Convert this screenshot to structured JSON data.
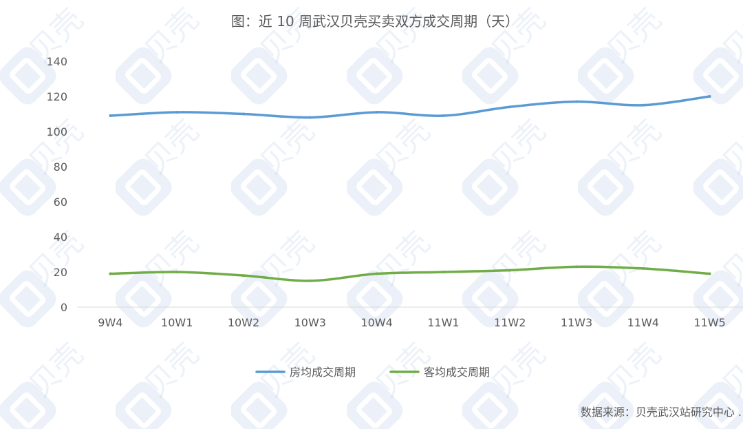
{
  "chart_data": {
    "type": "line",
    "title": "图：近 10 周武汉贝壳买卖双方成交周期（天）",
    "categories": [
      "9W4",
      "10W1",
      "10W2",
      "10W3",
      "10W4",
      "11W1",
      "11W2",
      "11W3",
      "11W4",
      "11W5"
    ],
    "series": [
      {
        "name": "房均成交周期",
        "color": "#5b9bd5",
        "values": [
          109,
          111,
          110,
          108,
          111,
          109,
          114,
          117,
          115,
          120
        ]
      },
      {
        "name": "客均成交周期",
        "color": "#70ad47",
        "values": [
          19,
          20,
          18,
          15,
          19,
          20,
          21,
          23,
          22,
          19
        ]
      }
    ],
    "ylim": [
      0,
      140
    ],
    "yticks": [
      0,
      20,
      40,
      60,
      80,
      100,
      120,
      140
    ],
    "grid": false,
    "legend_position": "bottom",
    "source": "数据来源：贝壳武汉站研究中心 ."
  },
  "watermark": {
    "text": "贝壳"
  }
}
